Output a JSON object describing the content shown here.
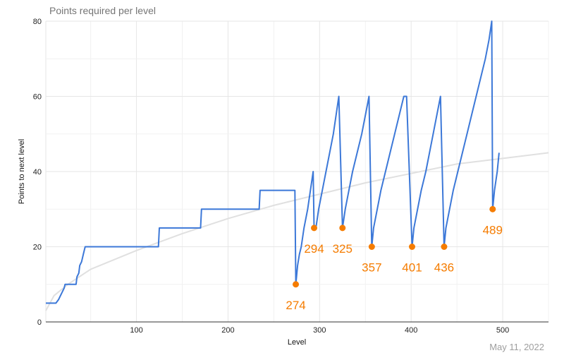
{
  "chart_data": {
    "type": "line",
    "title": "Points required per level",
    "xlabel": "Level",
    "ylabel": "Points to next level",
    "xlim": [
      1,
      550
    ],
    "ylim": [
      0,
      80
    ],
    "x_ticks": [
      100,
      200,
      300,
      400,
      500
    ],
    "y_ticks": [
      0,
      20,
      40,
      60,
      80
    ],
    "grid": true,
    "legend": "none",
    "colors": {
      "series": "#3c78d8",
      "trend": "#e0e0e0",
      "annotation": "#f57c00",
      "grid": "#e6e6e6"
    },
    "series": [
      {
        "values": [
          [
            1,
            5
          ],
          [
            12,
            5
          ],
          [
            15,
            6
          ],
          [
            17,
            7
          ],
          [
            19,
            8
          ],
          [
            21,
            9
          ],
          [
            22,
            10
          ],
          [
            34,
            10
          ],
          [
            35,
            12
          ],
          [
            37,
            13
          ],
          [
            38,
            15
          ],
          [
            40,
            16
          ],
          [
            42,
            18
          ],
          [
            44,
            20
          ],
          [
            124,
            20
          ],
          [
            125,
            25
          ],
          [
            170,
            25
          ],
          [
            171,
            30
          ],
          [
            234,
            30
          ],
          [
            235,
            35
          ],
          [
            273,
            35
          ],
          [
            274,
            10
          ],
          [
            276,
            15
          ],
          [
            278,
            18
          ],
          [
            280,
            20
          ],
          [
            283,
            25
          ],
          [
            287,
            30
          ],
          [
            290,
            35
          ],
          [
            293,
            40
          ],
          [
            294,
            25
          ],
          [
            296,
            25
          ],
          [
            299,
            30
          ],
          [
            303,
            35
          ],
          [
            307,
            40
          ],
          [
            311,
            45
          ],
          [
            315,
            50
          ],
          [
            318,
            55
          ],
          [
            321,
            60
          ],
          [
            325,
            25
          ],
          [
            328,
            30
          ],
          [
            332,
            35
          ],
          [
            336,
            40
          ],
          [
            341,
            45
          ],
          [
            346,
            50
          ],
          [
            350,
            55
          ],
          [
            354,
            60
          ],
          [
            357,
            20
          ],
          [
            359,
            25
          ],
          [
            363,
            30
          ],
          [
            367,
            35
          ],
          [
            372,
            40
          ],
          [
            377,
            45
          ],
          [
            382,
            50
          ],
          [
            387,
            55
          ],
          [
            392,
            60
          ],
          [
            395,
            60
          ],
          [
            401,
            20
          ],
          [
            403,
            25
          ],
          [
            407,
            30
          ],
          [
            411,
            35
          ],
          [
            416,
            40
          ],
          [
            420,
            45
          ],
          [
            424,
            50
          ],
          [
            428,
            55
          ],
          [
            432,
            60
          ],
          [
            436,
            20
          ],
          [
            438,
            25
          ],
          [
            442,
            30
          ],
          [
            446,
            35
          ],
          [
            451,
            40
          ],
          [
            456,
            45
          ],
          [
            461,
            50
          ],
          [
            466,
            55
          ],
          [
            471,
            60
          ],
          [
            476,
            65
          ],
          [
            481,
            70
          ],
          [
            485,
            75
          ],
          [
            488,
            80
          ],
          [
            489,
            30
          ],
          [
            491,
            35
          ],
          [
            494,
            40
          ],
          [
            496,
            45
          ]
        ]
      },
      {
        "values": [
          [
            1,
            3
          ],
          [
            10,
            7
          ],
          [
            25,
            10
          ],
          [
            50,
            14
          ],
          [
            100,
            19
          ],
          [
            150,
            23.5
          ],
          [
            200,
            27.5
          ],
          [
            250,
            31
          ],
          [
            300,
            34
          ],
          [
            350,
            37
          ],
          [
            400,
            39.5
          ],
          [
            450,
            42
          ],
          [
            500,
            43.5
          ],
          [
            550,
            45
          ]
        ]
      }
    ],
    "annotations": [
      {
        "x": 274,
        "y": 10,
        "label": "274"
      },
      {
        "x": 294,
        "y": 25,
        "label": "294"
      },
      {
        "x": 325,
        "y": 25,
        "label": "325"
      },
      {
        "x": 357,
        "y": 20,
        "label": "357"
      },
      {
        "x": 401,
        "y": 20,
        "label": "401"
      },
      {
        "x": 436,
        "y": 20,
        "label": "436"
      },
      {
        "x": 489,
        "y": 30,
        "label": "489"
      }
    ]
  },
  "footer": {
    "date": "May 11, 2022"
  }
}
